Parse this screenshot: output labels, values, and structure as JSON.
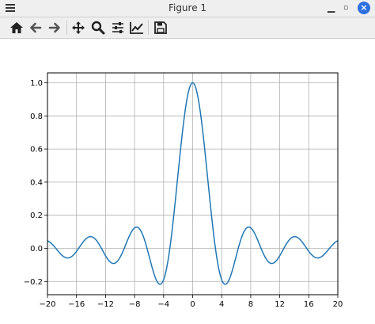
{
  "window": {
    "title": "Figure 1"
  },
  "toolbar": {
    "buttons": [
      "home-icon",
      "back-icon",
      "forward-icon",
      "pan-icon",
      "zoom-icon",
      "configure-subplots-icon",
      "edit-axis-icon",
      "save-icon"
    ]
  },
  "chart_data": {
    "type": "line",
    "function": "sin(x)/x",
    "series": [
      {
        "x_range": [
          -20,
          20
        ],
        "y_peak": 1.0
      }
    ],
    "xlim": [
      -20,
      20
    ],
    "ylim": [
      -0.28,
      1.06
    ],
    "xticks": [
      "−20",
      "−16",
      "−12",
      "−8",
      "−4",
      "0",
      "4",
      "8",
      "12",
      "16",
      "20"
    ],
    "xtick_values": [
      -20,
      -16,
      -12,
      -8,
      -4,
      0,
      4,
      8,
      12,
      16,
      20
    ],
    "yticks": [
      "−0.2",
      "0.0",
      "0.2",
      "0.4",
      "0.6",
      "0.8",
      "1.0"
    ],
    "ytick_values": [
      -0.2,
      0.0,
      0.2,
      0.4,
      0.6,
      0.8,
      1.0
    ],
    "grid": true,
    "line_color": "#1f77b4",
    "title": "",
    "xlabel": "",
    "ylabel": ""
  }
}
